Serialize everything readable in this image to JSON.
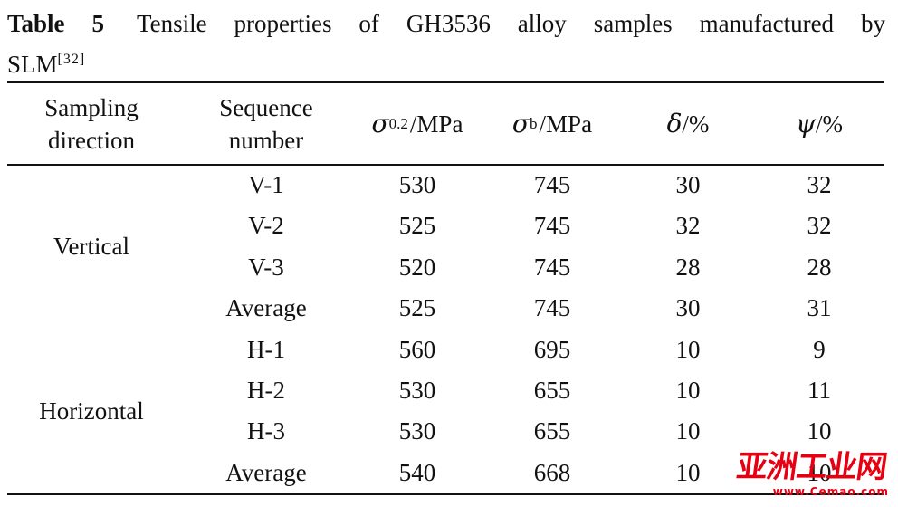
{
  "caption": {
    "table_label": "Table 5",
    "text_line1": "Tensile properties of GH3536 alloy samples manufactured by",
    "text_line2": "SLM",
    "reference": "[32]"
  },
  "columns": {
    "direction": "Sampling direction",
    "sequence": "Sequence number",
    "sigma02_symbol": "σ",
    "sigma02_sub": "0.2",
    "sigma02_unit": "/MPa",
    "sigmab_symbol": "σ",
    "sigmab_sub": "b",
    "sigmab_unit": "/MPa",
    "delta_symbol": "δ",
    "delta_unit": "/%",
    "psi_symbol": "ψ",
    "psi_unit": "/%"
  },
  "groups": {
    "vertical": "Vertical",
    "horizontal": "Horizontal"
  },
  "rows": [
    {
      "seq": "V-1",
      "s02": "530",
      "sb": "745",
      "delta": "30",
      "psi": "32"
    },
    {
      "seq": "V-2",
      "s02": "525",
      "sb": "745",
      "delta": "32",
      "psi": "32"
    },
    {
      "seq": "V-3",
      "s02": "520",
      "sb": "745",
      "delta": "28",
      "psi": "28"
    },
    {
      "seq": "Average",
      "s02": "525",
      "sb": "745",
      "delta": "30",
      "psi": "31"
    },
    {
      "seq": "H-1",
      "s02": "560",
      "sb": "695",
      "delta": "10",
      "psi": "9"
    },
    {
      "seq": "H-2",
      "s02": "530",
      "sb": "655",
      "delta": "10",
      "psi": "11"
    },
    {
      "seq": "H-3",
      "s02": "530",
      "sb": "655",
      "delta": "10",
      "psi": "10"
    },
    {
      "seq": "Average",
      "s02": "540",
      "sb": "668",
      "delta": "10",
      "psi": "10"
    }
  ],
  "watermark": {
    "logo_text": "亚洲工业网",
    "url": "www.Cemao.com",
    "color": "#e60012"
  }
}
